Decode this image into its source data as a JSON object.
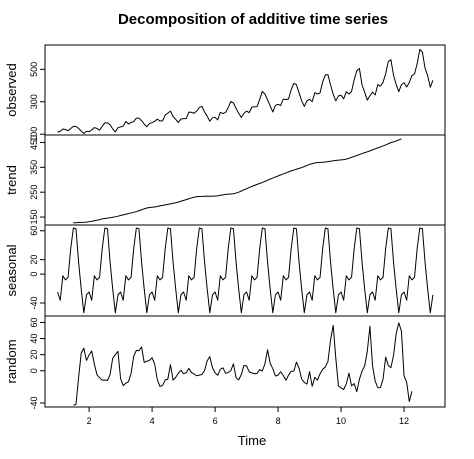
{
  "chart_data": {
    "type": "line",
    "title": "Decomposition of additive time series",
    "xlabel": "Time",
    "x_start": 1,
    "x_step": 0.08333,
    "xlim": [
      0.6,
      13.3
    ],
    "xticks": [
      2,
      4,
      6,
      8,
      10,
      12
    ],
    "panels": [
      {
        "ylabel": "observed",
        "ylim": [
          95,
          650
        ],
        "yticks": [
          100,
          300,
          500
        ],
        "x_start": 1,
        "values": [
          112,
          118,
          132,
          129,
          121,
          135,
          148,
          148,
          136,
          119,
          104,
          118,
          115,
          126,
          141,
          135,
          125,
          149,
          170,
          170,
          158,
          133,
          114,
          140,
          145,
          150,
          178,
          163,
          172,
          178,
          199,
          199,
          184,
          162,
          146,
          166,
          171,
          180,
          193,
          181,
          183,
          218,
          230,
          242,
          209,
          191,
          172,
          194,
          196,
          196,
          236,
          235,
          229,
          243,
          264,
          272,
          237,
          211,
          180,
          201,
          204,
          188,
          235,
          227,
          234,
          264,
          302,
          293,
          259,
          229,
          203,
          229,
          242,
          233,
          267,
          269,
          270,
          315,
          364,
          347,
          312,
          274,
          237,
          278,
          284,
          277,
          317,
          313,
          318,
          374,
          413,
          405,
          355,
          306,
          271,
          306,
          315,
          301,
          356,
          348,
          355,
          422,
          465,
          467,
          404,
          347,
          305,
          336,
          340,
          318,
          362,
          348,
          363,
          435,
          491,
          505,
          404,
          359,
          310,
          337,
          360,
          342,
          406,
          396,
          420,
          472,
          548,
          559,
          463,
          407,
          362,
          405,
          417,
          391,
          419,
          461,
          472,
          535,
          622,
          606,
          508,
          461,
          390,
          432
        ]
      },
      {
        "ylabel": "trend",
        "ylim": [
          118,
          480
        ],
        "yticks": [
          150,
          250,
          350,
          450
        ],
        "x_start": 1.5,
        "values": [
          126.8,
          127.2,
          128.0,
          128.6,
          129.0,
          129.8,
          131.3,
          133.1,
          135.1,
          137.3,
          139.8,
          142.4,
          144.0,
          145.8,
          147.4,
          149.0,
          150.9,
          153.4,
          156.3,
          158.8,
          161.2,
          164.0,
          166.5,
          169.0,
          172.1,
          175.4,
          179.2,
          183.0,
          186.3,
          188.6,
          189.3,
          190.3,
          192.4,
          194.8,
          197.0,
          199.0,
          201.1,
          203.1,
          205.3,
          207.4,
          210.2,
          213.6,
          216.9,
          220.1,
          223.6,
          226.9,
          229.6,
          232.0,
          232.8,
          233.3,
          233.9,
          234.0,
          233.7,
          234.0,
          234.3,
          235.5,
          237.3,
          239.3,
          241.0,
          242.0,
          242.6,
          243.9,
          246.4,
          250.0,
          254.7,
          259.5,
          264.0,
          268.7,
          273.4,
          277.5,
          281.5,
          284.9,
          289.1,
          293.5,
          298.2,
          302.5,
          306.8,
          311.0,
          315.4,
          319.6,
          323.4,
          327.4,
          331.8,
          335.8,
          339.0,
          342.3,
          345.6,
          348.9,
          353.2,
          357.5,
          361.5,
          365.0,
          367.4,
          369.2,
          369.9,
          370.5,
          371.4,
          372.8,
          374.6,
          376.5,
          377.6,
          378.8,
          379.9,
          380.9,
          383.0,
          386.3,
          390.0,
          393.8,
          397.5,
          401.3,
          405.4,
          409.0,
          412.3,
          416.2,
          420.1,
          424.5,
          428.1,
          432.0,
          436.0,
          440.1,
          444.8,
          449.3,
          452.2,
          455.9,
          460.0,
          464.5
        ]
      },
      {
        "ylabel": "seasonal",
        "ylim": [
          -58,
          68
        ],
        "yticks": [
          -40,
          0,
          20,
          60
        ],
        "x_start": 1,
        "values": [
          -24.75,
          -36.19,
          -2.24,
          -8.04,
          -4.51,
          35.4,
          63.83,
          62.82,
          16.52,
          -20.64,
          -53.59,
          -28.62,
          -24.75,
          -36.19,
          -2.24,
          -8.04,
          -4.51,
          35.4,
          63.83,
          62.82,
          16.52,
          -20.64,
          -53.59,
          -28.62,
          -24.75,
          -36.19,
          -2.24,
          -8.04,
          -4.51,
          35.4,
          63.83,
          62.82,
          16.52,
          -20.64,
          -53.59,
          -28.62,
          -24.75,
          -36.19,
          -2.24,
          -8.04,
          -4.51,
          35.4,
          63.83,
          62.82,
          16.52,
          -20.64,
          -53.59,
          -28.62,
          -24.75,
          -36.19,
          -2.24,
          -8.04,
          -4.51,
          35.4,
          63.83,
          62.82,
          16.52,
          -20.64,
          -53.59,
          -28.62,
          -24.75,
          -36.19,
          -2.24,
          -8.04,
          -4.51,
          35.4,
          63.83,
          62.82,
          16.52,
          -20.64,
          -53.59,
          -28.62,
          -24.75,
          -36.19,
          -2.24,
          -8.04,
          -4.51,
          35.4,
          63.83,
          62.82,
          16.52,
          -20.64,
          -53.59,
          -28.62,
          -24.75,
          -36.19,
          -2.24,
          -8.04,
          -4.51,
          35.4,
          63.83,
          62.82,
          16.52,
          -20.64,
          -53.59,
          -28.62,
          -24.75,
          -36.19,
          -2.24,
          -8.04,
          -4.51,
          35.4,
          63.83,
          62.82,
          16.52,
          -20.64,
          -53.59,
          -28.62,
          -24.75,
          -36.19,
          -2.24,
          -8.04,
          -4.51,
          35.4,
          63.83,
          62.82,
          16.52,
          -20.64,
          -53.59,
          -28.62,
          -24.75,
          -36.19,
          -2.24,
          -8.04,
          -4.51,
          35.4,
          63.83,
          62.82,
          16.52,
          -20.64,
          -53.59,
          -28.62,
          -24.75,
          -36.19,
          -2.24,
          -8.04,
          -4.51,
          35.4,
          63.83,
          62.82,
          16.52,
          -20.64,
          -53.59,
          -28.62
        ]
      },
      {
        "ylabel": "random",
        "ylim": [
          -45,
          68
        ],
        "yticks": [
          -40,
          0,
          20,
          40,
          60
        ],
        "x_start": 1.5,
        "values": [
          -42.6,
          -42.0,
          -8.4,
          22.0,
          28.0,
          12.8,
          19.6,
          24.5,
          8.4,
          -4.9,
          -8.6,
          -11.7,
          -11.5,
          -12.1,
          -4.7,
          15.6,
          20.0,
          24.1,
          -9.8,
          -18.4,
          -15.4,
          -13.6,
          -3.1,
          18.0,
          25.3,
          24.9,
          29.6,
          10.3,
          11.8,
          13.0,
          16.2,
          8.2,
          -11.2,
          -19.4,
          -18.2,
          -11.5,
          -10.4,
          7.5,
          -11.6,
          -8.2,
          -3.1,
          0.6,
          -3.6,
          -2.3,
          2.9,
          -2.1,
          -4.0,
          -6.2,
          -5.4,
          -4.6,
          0.4,
          12.4,
          17.6,
          3.8,
          -2.5,
          -5.6,
          1.8,
          3.7,
          -3.2,
          -2.1,
          0.2,
          8.6,
          -8.7,
          -11.3,
          -4.6,
          6.6,
          6.1,
          -1.4,
          -2.6,
          -3.7,
          -3.3,
          1.5,
          -0.3,
          8.6,
          26.1,
          9.3,
          2.6,
          -6.5,
          -5.4,
          -1.2,
          -5.9,
          -11.8,
          -5.4,
          -0.6,
          -0.4,
          10.7,
          3.2,
          -10.5,
          -14.4,
          -16.6,
          -1.1,
          -19.3,
          -8.2,
          -11.7,
          -3.8,
          1.8,
          4.6,
          11.4,
          38.2,
          56.4,
          15.6,
          -18.8,
          -21.3,
          -23.3,
          -16.2,
          -2.9,
          -18.7,
          -15.9,
          -26.1,
          -10.5,
          -0.4,
          5.9,
          24.1,
          55.3,
          6.1,
          -12.7,
          -21.1,
          -20.9,
          -10.4,
          17.0,
          6.6,
          3.8,
          19.1,
          46.1,
          59.5,
          49.3,
          -6.3,
          -14.3,
          -38.1,
          -25.6
        ]
      }
    ]
  }
}
